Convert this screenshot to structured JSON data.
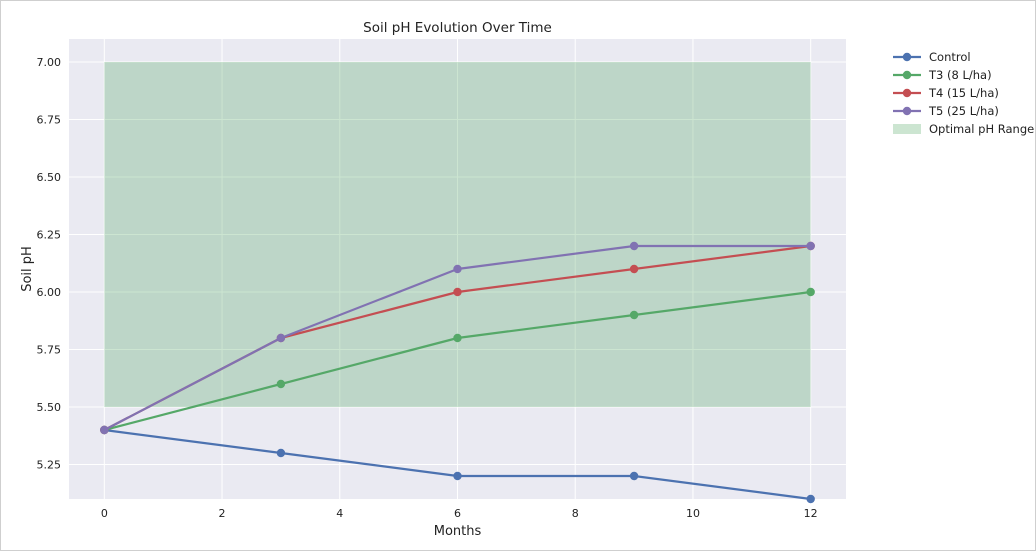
{
  "chart_data": {
    "type": "line",
    "title": "Soil pH Evolution Over Time",
    "xlabel": "Months",
    "ylabel": "Soil pH",
    "x": [
      0,
      3,
      6,
      9,
      12
    ],
    "xlim": [
      -0.6,
      12.6
    ],
    "ylim": [
      5.1,
      7.1
    ],
    "xticks": [
      0,
      2,
      4,
      6,
      8,
      10,
      12
    ],
    "xtick_labels": [
      "0",
      "2",
      "4",
      "6",
      "8",
      "10",
      "12"
    ],
    "yticks": [
      5.25,
      5.5,
      5.75,
      6.0,
      6.25,
      6.5,
      6.75,
      7.0
    ],
    "ytick_labels": [
      "5.25",
      "5.50",
      "5.75",
      "6.00",
      "6.25",
      "6.50",
      "6.75",
      "7.00"
    ],
    "grid": true,
    "legend_position": "outside-right",
    "series": [
      {
        "name": "Control",
        "color": "#4c72b0",
        "values": [
          5.4,
          5.3,
          5.2,
          5.2,
          5.1
        ]
      },
      {
        "name": "T3 (8 L/ha)",
        "color": "#55a868",
        "values": [
          5.4,
          5.6,
          5.8,
          5.9,
          6.0
        ]
      },
      {
        "name": "T4 (15 L/ha)",
        "color": "#c44e52",
        "values": [
          5.4,
          5.8,
          6.0,
          6.1,
          6.2
        ]
      },
      {
        "name": "T5 (25 L/ha)",
        "color": "#8172b2",
        "values": [
          5.4,
          5.8,
          6.1,
          6.2,
          6.2
        ]
      }
    ],
    "shaded_region": {
      "name": "Optimal pH Range",
      "color": "#55a868",
      "x_range": [
        0,
        12
      ],
      "y_range": [
        5.5,
        7.0
      ]
    }
  }
}
